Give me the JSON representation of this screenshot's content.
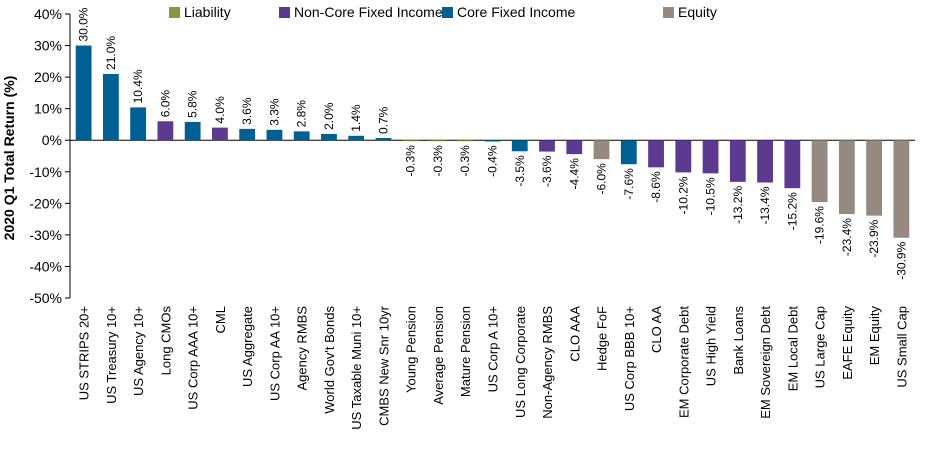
{
  "chart_data": {
    "type": "bar",
    "ylabel": "2020 Q1 Total Return (%)",
    "ylim": [
      -50,
      40
    ],
    "yticks": [
      40,
      30,
      20,
      10,
      0,
      -10,
      -20,
      -30,
      -40,
      -50
    ],
    "ytick_labels": [
      "40%",
      "30%",
      "20%",
      "10%",
      "0%",
      "-10%",
      "-20%",
      "-30%",
      "-40%",
      "-50%"
    ],
    "legend": [
      {
        "name": "Liability",
        "color": "#7d9a3c"
      },
      {
        "name": "Non-Core Fixed Income",
        "color": "#5b3a8f"
      },
      {
        "name": "Core Fixed Income",
        "color": "#005f93"
      },
      {
        "name": "Equity",
        "color": "#948a7f"
      }
    ],
    "legend_position": "top",
    "grid": false,
    "categories": [
      "US STRIPS 20+",
      "US Treasury 10+",
      "US Agency 10+",
      "Long CMOs",
      "US Corp AAA 10+",
      "CML",
      "US Aggregate",
      "US Corp AA 10+",
      "Agency RMBS",
      "World Gov't Bonds",
      "US Taxable Muni 10+",
      "CMBS New Snr 10yr",
      "Young Pension",
      "Average Pension",
      "Mature Pension",
      "US Corp A 10+",
      "US Long Corporate",
      "Non-Agency RMBS",
      "CLO AAA",
      "Hedge FoF",
      "US Corp BBB 10+",
      "CLO AA",
      "EM Corporate Debt",
      "US High Yield",
      "Bank Loans",
      "EM Sovereign Debt",
      "EM Local Debt",
      "US Large Cap",
      "EAFE Equity",
      "EM Equity",
      "US Small Cap"
    ],
    "values": [
      30.0,
      21.0,
      10.4,
      6.0,
      5.8,
      4.0,
      3.6,
      3.3,
      2.8,
      2.0,
      1.4,
      0.7,
      -0.3,
      -0.3,
      -0.3,
      -0.4,
      -3.5,
      -3.6,
      -4.4,
      -6.0,
      -7.6,
      -8.6,
      -10.2,
      -10.5,
      -13.2,
      -13.4,
      -15.2,
      -19.6,
      -23.4,
      -23.9,
      -30.9
    ],
    "value_labels": [
      "30.0%",
      "21.0%",
      "10.4%",
      "6.0%",
      "5.8%",
      "4.0%",
      "3.6%",
      "3.3%",
      "2.8%",
      "2.0%",
      "1.4%",
      "0.7%",
      "-0.3%",
      "-0.3%",
      "-0.3%",
      "-0.4%",
      "-3.5%",
      "-3.6%",
      "-4.4%",
      "-6.0%",
      "-7.6%",
      "-8.6%",
      "-10.2%",
      "-10.5%",
      "-13.2%",
      "-13.4%",
      "-15.2%",
      "-19.6%",
      "-23.4%",
      "-23.9%",
      "-30.9%"
    ],
    "groups": [
      "Core Fixed Income",
      "Core Fixed Income",
      "Core Fixed Income",
      "Non-Core Fixed Income",
      "Core Fixed Income",
      "Non-Core Fixed Income",
      "Core Fixed Income",
      "Core Fixed Income",
      "Core Fixed Income",
      "Core Fixed Income",
      "Core Fixed Income",
      "Core Fixed Income",
      "Liability",
      "Liability",
      "Liability",
      "Core Fixed Income",
      "Core Fixed Income",
      "Non-Core Fixed Income",
      "Non-Core Fixed Income",
      "Equity",
      "Core Fixed Income",
      "Non-Core Fixed Income",
      "Non-Core Fixed Income",
      "Non-Core Fixed Income",
      "Non-Core Fixed Income",
      "Non-Core Fixed Income",
      "Non-Core Fixed Income",
      "Equity",
      "Equity",
      "Equity",
      "Equity"
    ]
  }
}
